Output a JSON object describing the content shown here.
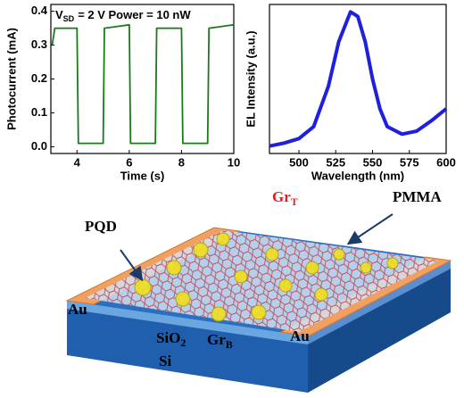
{
  "chart_data": [
    {
      "type": "line",
      "x_label": "Time (s)",
      "y_label": "Photocurrent (mA)",
      "annotation": {
        "main": "V",
        "sub": "SD",
        "rest": "= 2 V  Power = 10 nW"
      },
      "xlim": [
        3,
        10
      ],
      "xticks": [
        4,
        6,
        8,
        10
      ],
      "ylim": [
        -0.02,
        0.42
      ],
      "yticks": [
        {
          "value": 0,
          "label": "0.0"
        },
        0.1,
        0.2,
        0.3,
        0.4
      ],
      "series": [
        {
          "color": "#1a7a1a",
          "x": [
            3.05,
            3.15,
            4.0,
            4.05,
            5.0,
            5.05,
            6.0,
            6.05,
            7.0,
            7.05,
            8.0,
            8.05,
            9.0,
            9.05,
            10.0
          ],
          "values": [
            0.3,
            0.35,
            0.35,
            0.01,
            0.01,
            0.35,
            0.36,
            0.01,
            0.01,
            0.35,
            0.35,
            0.01,
            0.01,
            0.35,
            0.36
          ]
        }
      ]
    },
    {
      "type": "line",
      "x_label": "Wavelength (nm)",
      "y_label": "EL Intensity (a.u.)",
      "xlim": [
        480,
        600
      ],
      "xticks": [
        500,
        525,
        550,
        575,
        600
      ],
      "ylim": [
        0,
        1
      ],
      "series": [
        {
          "color": "#1f1fe0",
          "x": [
            480,
            490,
            500,
            510,
            520,
            527,
            535,
            540,
            545,
            550,
            555,
            560,
            570,
            580,
            590,
            600
          ],
          "values": [
            0.05,
            0.07,
            0.1,
            0.18,
            0.45,
            0.75,
            0.95,
            0.92,
            0.75,
            0.5,
            0.3,
            0.18,
            0.13,
            0.15,
            0.22,
            0.3
          ]
        }
      ]
    }
  ],
  "diagram": {
    "labels": [
      {
        "text": "PQD"
      },
      {
        "text": "Gr",
        "sub": "T"
      },
      {
        "text": "PMMA"
      },
      {
        "text": "Au"
      },
      {
        "text": "Au"
      },
      {
        "text": "SiO",
        "sub": "2"
      },
      {
        "text": "Gr",
        "sub": "B"
      },
      {
        "text": "Si"
      }
    ]
  }
}
